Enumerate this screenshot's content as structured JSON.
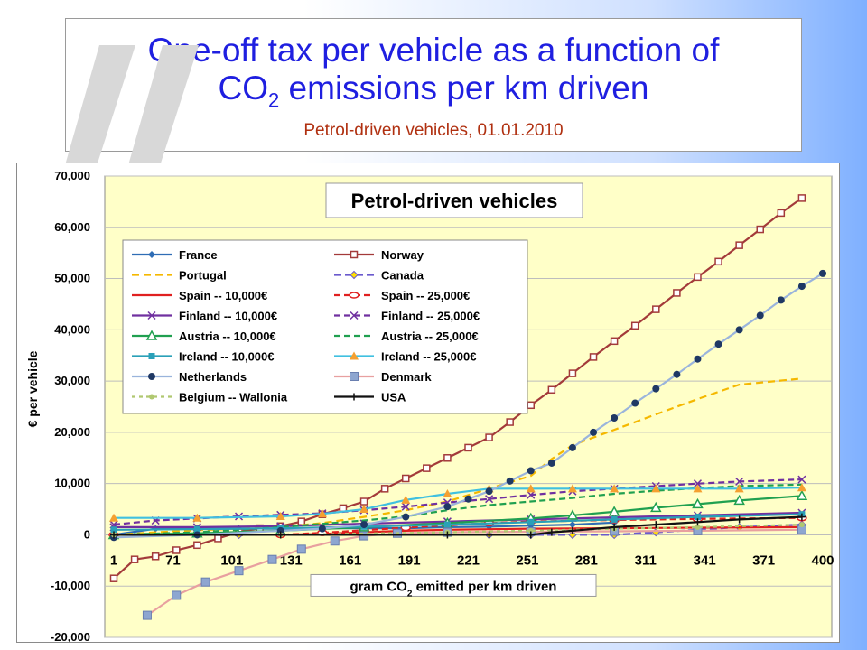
{
  "slide": {
    "title_line1": "One-off tax per vehicle as a function of",
    "title_line2_pre": "CO",
    "title_line2_sub": "2",
    "title_line2_post": " emissions per km driven",
    "subtitle": "Petrol-driven vehicles, 01.01.2010"
  },
  "chart_data": {
    "type": "line",
    "title": "Petrol-driven vehicles",
    "xlabel_pre": "gram CO",
    "xlabel_sub": "2",
    "xlabel_post": " emitted per km driven",
    "ylabel": "€ per vehicle",
    "x_ticks": [
      "1",
      "71",
      "101",
      "131",
      "161",
      "191",
      "221",
      "251",
      "281",
      "311",
      "341",
      "371",
      "400"
    ],
    "y_ticks": [
      "70,000",
      "60,000",
      "50,000",
      "40,000",
      "30,000",
      "20,000",
      "10,000",
      "0",
      "-10,000",
      "-20,000"
    ],
    "ylim": [
      -20000,
      70000
    ],
    "plot_background": "#ffffc8",
    "grid": true,
    "legend_placement": "top-left",
    "series": [
      {
        "name": "France",
        "color": "#2f6db5",
        "dash": "",
        "marker": "diamond",
        "points": [
          [
            0,
            0
          ],
          [
            1,
            1200
          ],
          [
            2,
            1200
          ],
          [
            3,
            1200
          ],
          [
            4,
            1200
          ],
          [
            5,
            1300
          ],
          [
            6,
            1300
          ],
          [
            7,
            1300
          ],
          [
            8,
            1500
          ],
          [
            9,
            1600
          ],
          [
            10,
            1800
          ],
          [
            11,
            2000
          ],
          [
            12,
            2400
          ]
        ]
      },
      {
        "name": "Norway",
        "color": "#a33a3a",
        "dash": "",
        "marker": "square-open",
        "points": [
          [
            0,
            -8500
          ],
          [
            0.5,
            -4800
          ],
          [
            1,
            -4200
          ],
          [
            1.5,
            -3000
          ],
          [
            2,
            -2000
          ],
          [
            2.5,
            -700
          ],
          [
            3,
            500
          ],
          [
            3.5,
            1300
          ],
          [
            4,
            1700
          ],
          [
            4.5,
            2600
          ],
          [
            5,
            4000
          ],
          [
            5.5,
            5200
          ],
          [
            6,
            6500
          ],
          [
            6.5,
            9000
          ],
          [
            7,
            11000
          ],
          [
            7.5,
            13000
          ],
          [
            8,
            15000
          ],
          [
            8.5,
            17000
          ],
          [
            9,
            19000
          ],
          [
            9.5,
            22000
          ],
          [
            10,
            25300
          ],
          [
            10.5,
            28300
          ],
          [
            11,
            31500
          ],
          [
            11.5,
            34700
          ],
          [
            12,
            37800
          ],
          [
            12.5,
            40800
          ],
          [
            13,
            44000
          ],
          [
            13.5,
            47200
          ],
          [
            14,
            50300
          ],
          [
            14.5,
            53300
          ],
          [
            15,
            56500
          ],
          [
            15.5,
            59600
          ],
          [
            16,
            62800
          ],
          [
            16.5,
            65700
          ]
        ]
      },
      {
        "name": "Portugal",
        "color": "#f5b800",
        "dash": "8,5",
        "marker": "",
        "points": [
          [
            0,
            0
          ],
          [
            1,
            500
          ],
          [
            2,
            900
          ],
          [
            3,
            1200
          ],
          [
            4,
            1500
          ],
          [
            5,
            2300
          ],
          [
            6,
            3500
          ],
          [
            7,
            4800
          ],
          [
            8,
            6500
          ],
          [
            9,
            9000
          ],
          [
            10,
            11500
          ],
          [
            10.5,
            14800
          ],
          [
            11,
            17500
          ],
          [
            12,
            20500
          ],
          [
            13,
            23500
          ],
          [
            14,
            26500
          ],
          [
            15,
            29300
          ],
          [
            16.5,
            30500
          ]
        ]
      },
      {
        "name": "Canada",
        "color": "#6a5acd",
        "dash": "8,4",
        "marker": "diamond-yellow",
        "points": [
          [
            0,
            0
          ],
          [
            3,
            0
          ],
          [
            6,
            0
          ],
          [
            9,
            0
          ],
          [
            10,
            0
          ],
          [
            11,
            0
          ],
          [
            12,
            0
          ],
          [
            13,
            500
          ],
          [
            14,
            1000
          ],
          [
            15,
            1500
          ],
          [
            16.5,
            2000
          ]
        ]
      },
      {
        "name": "Spain -- 10,000€",
        "color": "#e02020",
        "dash": "",
        "marker": "",
        "points": [
          [
            0,
            0
          ],
          [
            4,
            0
          ],
          [
            5,
            200
          ],
          [
            6,
            500
          ],
          [
            7,
            800
          ],
          [
            8,
            1000
          ],
          [
            9,
            1100
          ],
          [
            10,
            1200
          ],
          [
            12,
            1300
          ],
          [
            14,
            1400
          ],
          [
            16.5,
            1500
          ]
        ]
      },
      {
        "name": "Spain -- 25,000€",
        "color": "#e02020",
        "dash": "7,4",
        "marker": "circle-open",
        "points": [
          [
            0,
            0
          ],
          [
            4,
            0
          ],
          [
            5,
            400
          ],
          [
            6,
            900
          ],
          [
            7,
            1400
          ],
          [
            8,
            1900
          ],
          [
            9,
            2300
          ],
          [
            10,
            2600
          ],
          [
            12,
            2900
          ],
          [
            14,
            3100
          ],
          [
            16.5,
            3300
          ]
        ]
      },
      {
        "name": "Finland -- 10,000€",
        "color": "#7030a0",
        "dash": "",
        "marker": "x",
        "points": [
          [
            0,
            1500
          ],
          [
            2,
            1500
          ],
          [
            4,
            1700
          ],
          [
            6,
            2200
          ],
          [
            8,
            2600
          ],
          [
            10,
            3000
          ],
          [
            12,
            3400
          ],
          [
            14,
            3800
          ],
          [
            16.5,
            4300
          ]
        ]
      },
      {
        "name": "Finland -- 25,000€",
        "color": "#7030a0",
        "dash": "7,4",
        "marker": "x",
        "points": [
          [
            0,
            2000
          ],
          [
            1,
            2800
          ],
          [
            2,
            3200
          ],
          [
            3,
            3600
          ],
          [
            4,
            3900
          ],
          [
            5,
            4200
          ],
          [
            6,
            4800
          ],
          [
            7,
            5500
          ],
          [
            8,
            6300
          ],
          [
            9,
            7000
          ],
          [
            10,
            7800
          ],
          [
            11,
            8500
          ],
          [
            12,
            9000
          ],
          [
            13,
            9500
          ],
          [
            14,
            10000
          ],
          [
            15,
            10400
          ],
          [
            16.5,
            10800
          ]
        ]
      },
      {
        "name": "Austria -- 10,000€",
        "color": "#20a050",
        "dash": "",
        "marker": "triangle-open",
        "points": [
          [
            0,
            0
          ],
          [
            2,
            300
          ],
          [
            4,
            800
          ],
          [
            6,
            1500
          ],
          [
            8,
            2300
          ],
          [
            10,
            3200
          ],
          [
            11,
            3800
          ],
          [
            12,
            4500
          ],
          [
            13,
            5300
          ],
          [
            14,
            6000
          ],
          [
            15,
            6700
          ],
          [
            16.5,
            7600
          ]
        ]
      },
      {
        "name": "Austria -- 25,000€",
        "color": "#20a050",
        "dash": "7,4",
        "marker": "",
        "points": [
          [
            0,
            0
          ],
          [
            2,
            500
          ],
          [
            4,
            1500
          ],
          [
            6,
            2800
          ],
          [
            7,
            3600
          ],
          [
            8,
            4800
          ],
          [
            9,
            5800
          ],
          [
            10,
            6500
          ],
          [
            11,
            7200
          ],
          [
            12,
            8000
          ],
          [
            13,
            8600
          ],
          [
            14,
            9100
          ],
          [
            15,
            9500
          ],
          [
            16.5,
            9800
          ]
        ]
      },
      {
        "name": "Ireland -- 10,000€",
        "color": "#2aa0b8",
        "dash": "",
        "marker": "square",
        "points": [
          [
            0,
            1000
          ],
          [
            2,
            1100
          ],
          [
            4,
            1300
          ],
          [
            6,
            1600
          ],
          [
            8,
            2000
          ],
          [
            10,
            2500
          ],
          [
            12,
            3000
          ],
          [
            14,
            3500
          ],
          [
            16.5,
            4000
          ]
        ]
      },
      {
        "name": "Ireland -- 25,000€",
        "color": "#40c0e0",
        "dash": "",
        "marker": "triangle-orange",
        "points": [
          [
            0,
            3300
          ],
          [
            2,
            3300
          ],
          [
            4,
            3600
          ],
          [
            5,
            4100
          ],
          [
            6,
            5000
          ],
          [
            7,
            6800
          ],
          [
            8,
            8000
          ],
          [
            9,
            9000
          ],
          [
            10,
            9000
          ],
          [
            11,
            9000
          ],
          [
            12,
            9000
          ],
          [
            13,
            9000
          ],
          [
            14,
            9000
          ],
          [
            15,
            9000
          ],
          [
            16.5,
            9200
          ]
        ]
      },
      {
        "name": "Netherlands",
        "color": "#9ab4dc",
        "dash": "",
        "marker": "circle-navy",
        "points": [
          [
            0,
            -500
          ],
          [
            2,
            0
          ],
          [
            4,
            800
          ],
          [
            5,
            1200
          ],
          [
            6,
            2000
          ],
          [
            7,
            3500
          ],
          [
            8,
            5500
          ],
          [
            8.5,
            7000
          ],
          [
            9,
            8500
          ],
          [
            9.5,
            10500
          ],
          [
            10,
            12500
          ],
          [
            10.5,
            14000
          ],
          [
            11,
            17000
          ],
          [
            11.5,
            20000
          ],
          [
            12,
            22800
          ],
          [
            12.5,
            25700
          ],
          [
            13,
            28500
          ],
          [
            13.5,
            31300
          ],
          [
            14,
            34300
          ],
          [
            14.5,
            37200
          ],
          [
            15,
            40000
          ],
          [
            15.5,
            42800
          ],
          [
            16,
            45800
          ],
          [
            16.5,
            48500
          ],
          [
            17,
            51000
          ]
        ]
      },
      {
        "name": "Denmark",
        "color": "#e8a0a0",
        "dash": "",
        "marker": "square-x",
        "points": [
          [
            0.8,
            -15700
          ],
          [
            1.5,
            -11800
          ],
          [
            2.2,
            -9200
          ],
          [
            3,
            -7000
          ],
          [
            3.8,
            -4800
          ],
          [
            4.5,
            -2800
          ],
          [
            5.3,
            -1200
          ],
          [
            6,
            -200
          ],
          [
            6.8,
            300
          ],
          [
            8,
            500
          ],
          [
            10,
            600
          ],
          [
            12,
            700
          ],
          [
            14,
            800
          ],
          [
            16.5,
            1000
          ]
        ]
      },
      {
        "name": "Belgium -- Wallonia",
        "color": "#b0c870",
        "dash": "4,4",
        "marker": "circle-small",
        "points": [
          [
            0,
            0
          ],
          [
            4,
            0
          ],
          [
            8,
            500
          ],
          [
            10,
            800
          ],
          [
            12,
            1200
          ],
          [
            14,
            1500
          ],
          [
            16.5,
            2000
          ]
        ]
      },
      {
        "name": "USA",
        "color": "#111111",
        "dash": "",
        "marker": "plus",
        "points": [
          [
            0,
            0
          ],
          [
            4,
            0
          ],
          [
            8,
            0
          ],
          [
            9,
            0
          ],
          [
            10,
            0
          ],
          [
            10.5,
            500
          ],
          [
            11,
            800
          ],
          [
            12,
            1500
          ],
          [
            13,
            2000
          ],
          [
            14,
            2500
          ],
          [
            15,
            3000
          ],
          [
            16.5,
            3500
          ]
        ]
      }
    ]
  }
}
